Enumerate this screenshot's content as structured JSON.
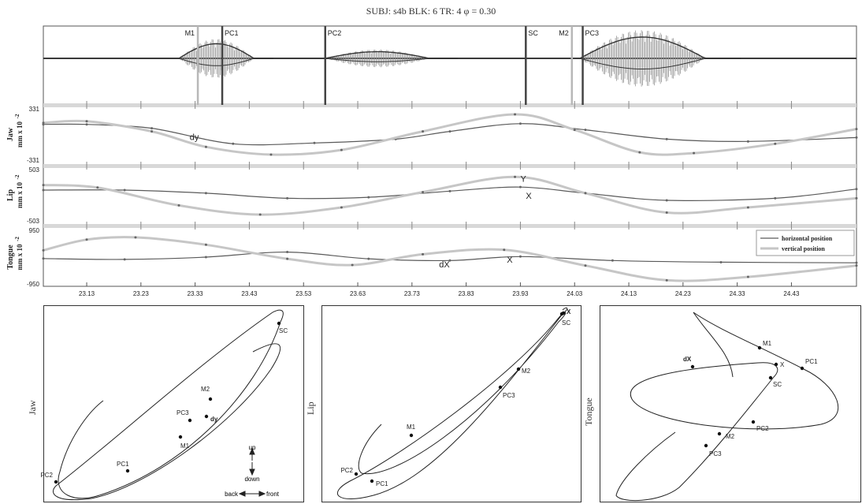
{
  "header": {
    "title": "SUBJ: s4b   BLK: 6   TR: 4   φ = 0.30"
  },
  "chart_data": [
    {
      "type": "line",
      "title": "SUBJ: s4b   BLK: 6   TR: 4   φ = 0.30",
      "xlim": [
        23.05,
        24.55
      ],
      "xticks": [
        "23.13",
        "23.23",
        "23.33",
        "23.43",
        "23.53",
        "23.63",
        "23.73",
        "23.83",
        "23.93",
        "24.03",
        "24.13",
        "24.23",
        "24.33",
        "24.43"
      ],
      "xtick_values": [
        23.13,
        23.23,
        23.33,
        23.43,
        23.53,
        23.63,
        23.73,
        23.83,
        23.93,
        24.03,
        24.13,
        24.23,
        24.33,
        24.43
      ],
      "events": [
        {
          "label": "M1",
          "t": 23.335,
          "style": "light"
        },
        {
          "label": "PC1",
          "t": 23.38,
          "style": "dark"
        },
        {
          "label": "PC2",
          "t": 23.57,
          "style": "dark"
        },
        {
          "label": "SC",
          "t": 23.94,
          "style": "dark"
        },
        {
          "label": "M2",
          "t": 24.025,
          "style": "light"
        },
        {
          "label": "PC3",
          "t": 24.045,
          "style": "dark"
        }
      ],
      "audio_bursts": [
        {
          "from": 23.3,
          "to": 23.48,
          "amp": 0.55
        },
        {
          "from": 23.57,
          "to": 23.82,
          "amp": 0.25
        },
        {
          "from": 24.04,
          "to": 24.34,
          "amp": 0.8
        }
      ],
      "panels": [
        {
          "name": "Jaw",
          "ylabel_top": "Jaw",
          "ylabel_bottom": "mm x 10",
          "ylabel_exp": "-2",
          "ytick_top": "331",
          "ytick_bottom": "-331",
          "ylim": [
            -331,
            331
          ],
          "series": [
            {
              "role": "horizontal",
              "t": [
                23.05,
                23.13,
                23.25,
                23.4,
                23.55,
                23.7,
                23.8,
                23.93,
                24.05,
                24.2,
                24.35,
                24.55
              ],
              "y": [
                130,
                130,
                80,
                -120,
                -110,
                -60,
                40,
                140,
                60,
                -60,
                -90,
                -40
              ]
            },
            {
              "role": "vertical",
              "t": [
                23.05,
                23.13,
                23.25,
                23.35,
                23.47,
                23.6,
                23.75,
                23.92,
                24.03,
                24.15,
                24.25,
                24.4,
                24.55
              ],
              "y": [
                150,
                170,
                40,
                -160,
                -260,
                -200,
                40,
                260,
                60,
                -230,
                -240,
                -120,
                70
              ]
            }
          ],
          "annotations": [
            {
              "text": "dy",
              "t": 23.32,
              "y": -70
            }
          ]
        },
        {
          "name": "Lip",
          "ylabel_top": "Lip",
          "ylabel_bottom": "mm x 10",
          "ylabel_exp": "-2",
          "ytick_top": "503",
          "ytick_bottom": "-503",
          "ylim": [
            -503,
            503
          ],
          "series": [
            {
              "role": "horizontal",
              "t": [
                23.05,
                23.2,
                23.35,
                23.5,
                23.65,
                23.8,
                23.93,
                24.05,
                24.2,
                24.4,
                24.55
              ],
              "y": [
                100,
                100,
                40,
                -60,
                -40,
                80,
                160,
                40,
                -100,
                -60,
                120
              ]
            },
            {
              "role": "vertical",
              "t": [
                23.05,
                23.15,
                23.3,
                23.45,
                23.6,
                23.75,
                23.92,
                24.05,
                24.2,
                24.35,
                24.55
              ],
              "y": [
                200,
                150,
                -200,
                -380,
                -240,
                60,
                360,
                40,
                -340,
                -240,
                -60
              ]
            }
          ],
          "annotations": [
            {
              "text": "Y",
              "t": 23.93,
              "y": 260
            },
            {
              "text": "X",
              "t": 23.94,
              "y": -70
            }
          ]
        },
        {
          "name": "Tongue",
          "ylabel_top": "Tongue",
          "ylabel_bottom": "mm x 10",
          "ylabel_exp": "-2",
          "ytick_top": "950",
          "ytick_bottom": "-950",
          "ylim": [
            -950,
            950
          ],
          "series": [
            {
              "role": "horizontal",
              "t": [
                23.05,
                23.2,
                23.35,
                23.5,
                23.65,
                23.8,
                23.93,
                24.1,
                24.3,
                24.55
              ],
              "y": [
                -50,
                -80,
                0,
                180,
                -60,
                -120,
                20,
                -120,
                -180,
                -200
              ]
            },
            {
              "role": "vertical",
              "t": [
                23.05,
                23.13,
                23.22,
                23.35,
                23.5,
                23.62,
                23.75,
                23.9,
                24.05,
                24.2,
                24.35,
                24.55
              ],
              "y": [
                240,
                620,
                700,
                440,
                -60,
                -280,
                100,
                260,
                -300,
                -820,
                -700,
                -300
              ]
            }
          ],
          "annotations": [
            {
              "text": "dX",
              "t": 23.78,
              "y": -370
            },
            {
              "text": "X",
              "t": 23.905,
              "y": -200
            }
          ]
        }
      ],
      "legend": {
        "placement": "right",
        "entries": [
          "horizontal position",
          "vertical position"
        ]
      }
    },
    {
      "type": "line",
      "ylabel": "Jaw",
      "points": [
        "PC2",
        "PC1",
        "M1",
        "dy",
        "PC3",
        "M2",
        "SC"
      ],
      "bold_point": "dy",
      "direction_key": {
        "up": "up",
        "down": "down",
        "back": "back",
        "front": "front"
      }
    },
    {
      "type": "line",
      "ylabel": "Lip",
      "points": [
        "PC2",
        "PC1",
        "M1",
        "PC3",
        "M2",
        "SC",
        "X"
      ],
      "bold_point": "X"
    },
    {
      "type": "line",
      "ylabel": "Tongue",
      "points": [
        "M1",
        "PC1",
        "dX",
        "X",
        "SC",
        "PC2",
        "M2",
        "PC3"
      ],
      "bold_point": "dX"
    }
  ],
  "colors": {
    "dark_trace": "#5a5a5a",
    "light_trace": "#c6c6c6",
    "audio": "#3a3a3a",
    "event_light": "#b8b8b8",
    "event_dark": "#444444"
  }
}
